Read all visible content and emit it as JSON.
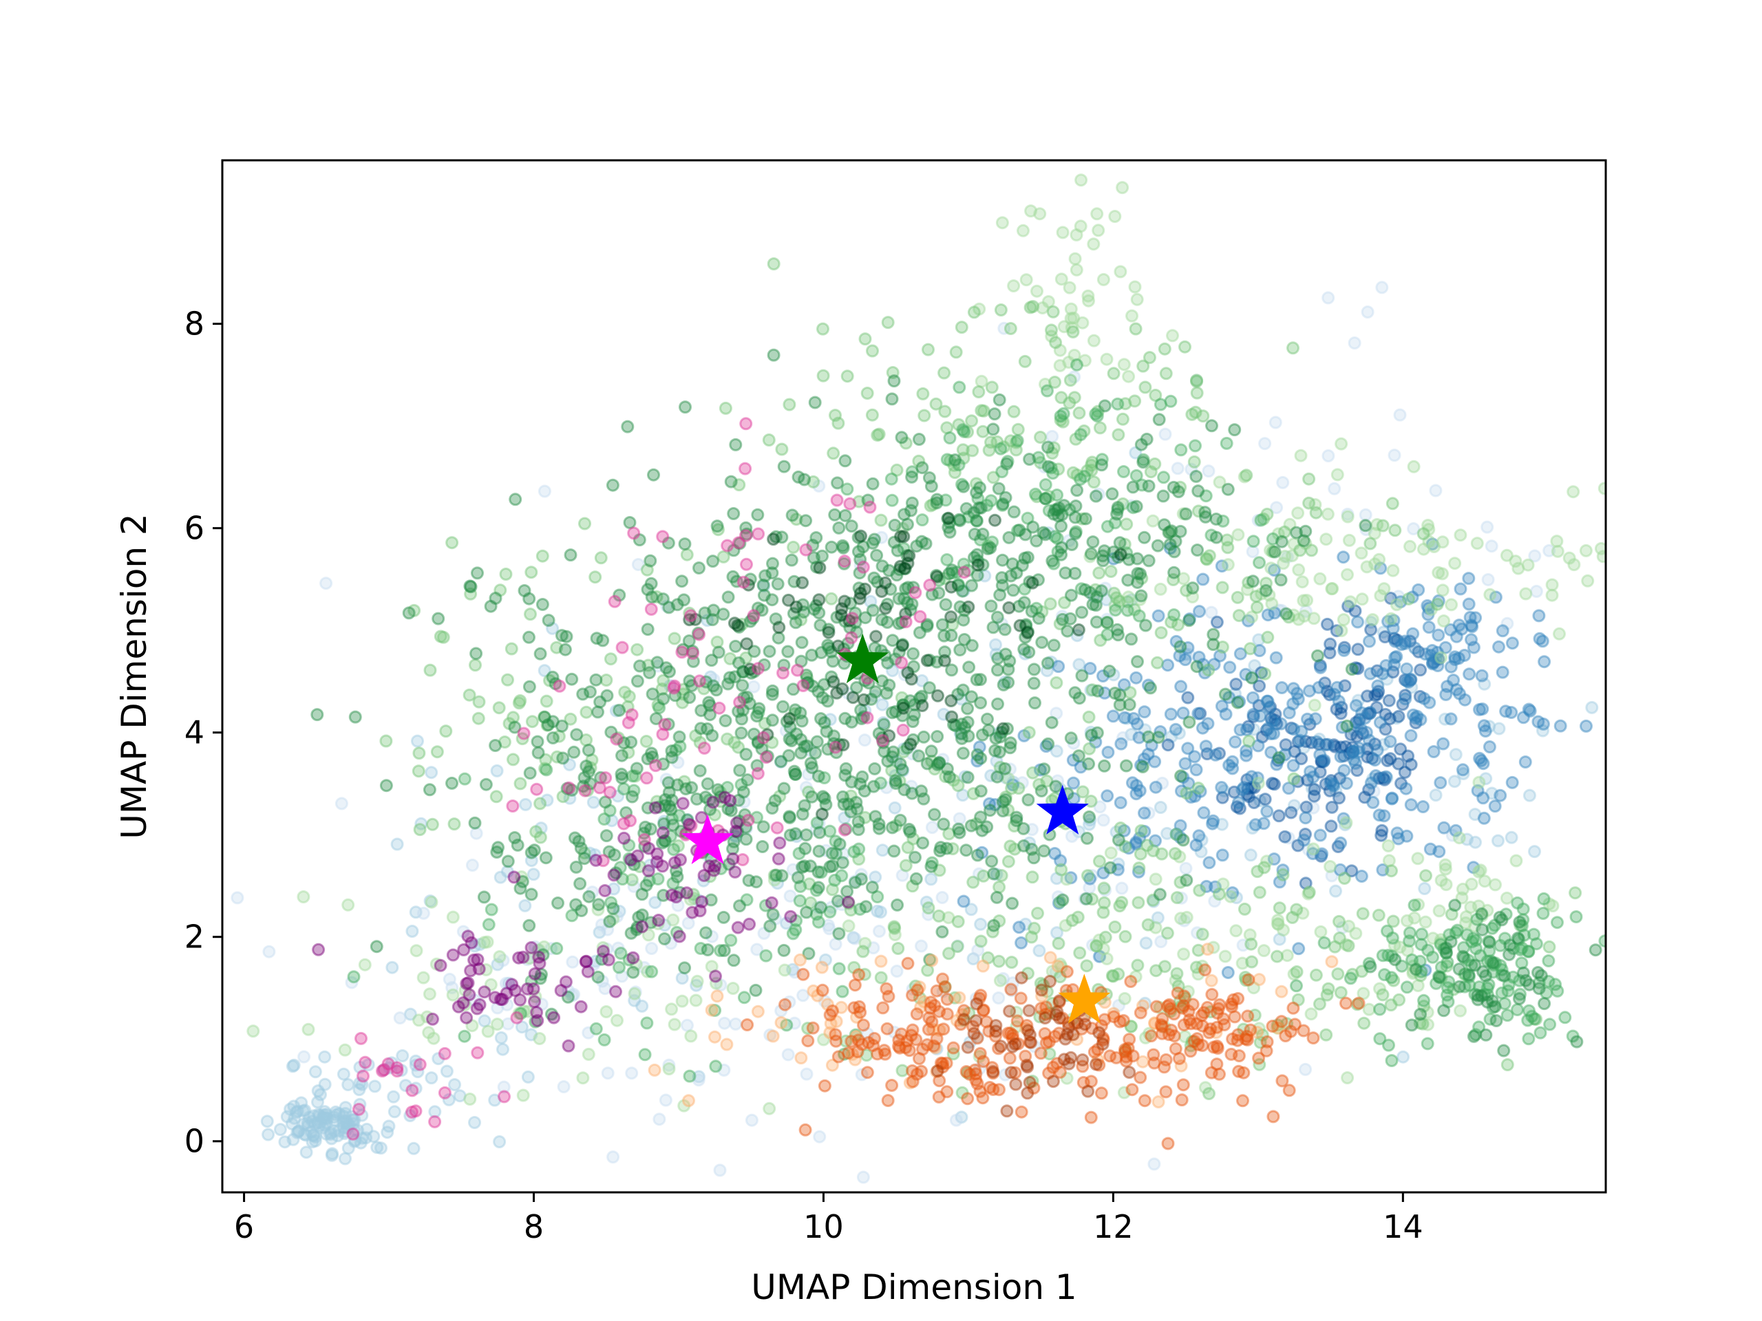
{
  "chart_data": {
    "type": "scatter",
    "title": "",
    "xlabel": "UMAP Dimension 1",
    "ylabel": "UMAP Dimension 2",
    "xlim": [
      5.85,
      15.4
    ],
    "ylim": [
      -0.5,
      9.6
    ],
    "xticks": [
      6,
      8,
      10,
      12,
      14
    ],
    "yticks": [
      0,
      2,
      4,
      6,
      8
    ],
    "grid": false,
    "legend": "none",
    "point_alpha": 0.45,
    "series": [
      {
        "color": "#9ecae1",
        "clusters": [
          {
            "cx": 6.55,
            "cy": 0.15,
            "sx": 0.15,
            "sy": 0.12,
            "n": 90
          },
          {
            "cx": 7.0,
            "cy": 0.5,
            "sx": 0.35,
            "sy": 0.25,
            "n": 50
          },
          {
            "cx": 8.4,
            "cy": 2.6,
            "sx": 0.7,
            "sy": 1.0,
            "n": 60
          },
          {
            "cx": 11.0,
            "cy": 3.4,
            "sx": 0.9,
            "sy": 1.1,
            "n": 80
          },
          {
            "cx": 13.5,
            "cy": 3.5,
            "sx": 1.0,
            "sy": 1.0,
            "n": 60
          }
        ]
      },
      {
        "color": "#c6dbef",
        "clusters": [
          {
            "cx": 10.5,
            "cy": 2.5,
            "sx": 1.6,
            "sy": 1.5,
            "n": 130
          },
          {
            "cx": 12.8,
            "cy": 6.2,
            "sx": 1.2,
            "sy": 0.9,
            "n": 50
          },
          {
            "cx": 8.6,
            "cy": 1.6,
            "sx": 1.0,
            "sy": 0.7,
            "n": 60
          }
        ]
      },
      {
        "color": "#08519c",
        "clusters": [
          {
            "cx": 13.3,
            "cy": 3.8,
            "sx": 0.35,
            "sy": 0.45,
            "n": 80
          },
          {
            "cx": 13.75,
            "cy": 4.2,
            "sx": 0.25,
            "sy": 0.55,
            "n": 70
          }
        ]
      },
      {
        "color": "#3182bd",
        "clusters": [
          {
            "cx": 13.4,
            "cy": 4.0,
            "sx": 0.75,
            "sy": 0.75,
            "n": 220
          },
          {
            "cx": 12.4,
            "cy": 3.2,
            "sx": 0.6,
            "sy": 0.6,
            "n": 80
          },
          {
            "cx": 14.4,
            "cy": 4.8,
            "sx": 0.4,
            "sy": 0.5,
            "n": 60
          }
        ]
      },
      {
        "color": "#a1d99b",
        "clusters": [
          {
            "cx": 13.8,
            "cy": 5.6,
            "sx": 0.9,
            "sy": 0.4,
            "n": 110
          },
          {
            "cx": 11.7,
            "cy": 8.3,
            "sx": 0.3,
            "sy": 0.6,
            "n": 50
          },
          {
            "cx": 8.3,
            "cy": 1.6,
            "sx": 0.8,
            "sy": 0.6,
            "n": 70
          },
          {
            "cx": 12.6,
            "cy": 1.8,
            "sx": 1.2,
            "sy": 0.6,
            "n": 90
          },
          {
            "cx": 14.4,
            "cy": 2.4,
            "sx": 0.3,
            "sy": 0.3,
            "n": 30
          }
        ]
      },
      {
        "color": "#74c476",
        "clusters": [
          {
            "cx": 11.3,
            "cy": 7.0,
            "sx": 0.9,
            "sy": 0.6,
            "n": 130
          },
          {
            "cx": 8.5,
            "cy": 4.3,
            "sx": 0.7,
            "sy": 0.9,
            "n": 110
          },
          {
            "cx": 11.4,
            "cy": 2.4,
            "sx": 0.8,
            "sy": 0.8,
            "n": 140
          },
          {
            "cx": 13.2,
            "cy": 1.7,
            "sx": 0.9,
            "sy": 0.5,
            "n": 90
          },
          {
            "cx": 12.6,
            "cy": 5.4,
            "sx": 0.8,
            "sy": 0.5,
            "n": 60
          }
        ]
      },
      {
        "color": "#41ab5d",
        "clusters": [
          {
            "cx": 14.5,
            "cy": 1.7,
            "sx": 0.45,
            "sy": 0.35,
            "n": 130
          },
          {
            "cx": 11.6,
            "cy": 6.2,
            "sx": 0.7,
            "sy": 0.6,
            "n": 90
          },
          {
            "cx": 9.2,
            "cy": 2.4,
            "sx": 0.8,
            "sy": 0.7,
            "n": 90
          }
        ]
      },
      {
        "color": "#238b45",
        "clusters": [
          {
            "cx": 10.2,
            "cy": 4.8,
            "sx": 1.1,
            "sy": 0.9,
            "n": 420
          },
          {
            "cx": 9.0,
            "cy": 3.2,
            "sx": 0.7,
            "sy": 0.8,
            "n": 190
          },
          {
            "cx": 11.5,
            "cy": 5.8,
            "sx": 0.8,
            "sy": 0.6,
            "n": 180
          },
          {
            "cx": 10.7,
            "cy": 3.3,
            "sx": 0.7,
            "sy": 0.7,
            "n": 130
          },
          {
            "cx": 14.6,
            "cy": 1.6,
            "sx": 0.3,
            "sy": 0.3,
            "n": 50
          }
        ]
      },
      {
        "color": "#00441b",
        "clusters": [
          {
            "cx": 10.4,
            "cy": 5.0,
            "sx": 0.6,
            "sy": 0.6,
            "n": 70
          }
        ]
      },
      {
        "color": "#dd3497",
        "clusters": [
          {
            "cx": 9.8,
            "cy": 5.0,
            "sx": 0.8,
            "sy": 0.7,
            "n": 50
          },
          {
            "cx": 8.8,
            "cy": 3.4,
            "sx": 0.5,
            "sy": 0.5,
            "n": 30
          },
          {
            "cx": 7.1,
            "cy": 0.6,
            "sx": 0.3,
            "sy": 0.3,
            "n": 20
          }
        ]
      },
      {
        "color": "#7a0177",
        "clusters": [
          {
            "cx": 7.9,
            "cy": 1.6,
            "sx": 0.35,
            "sy": 0.25,
            "n": 50
          },
          {
            "cx": 9.1,
            "cy": 2.6,
            "sx": 0.35,
            "sy": 0.4,
            "n": 50
          }
        ]
      },
      {
        "color": "#fdae6b",
        "clusters": [
          {
            "cx": 11.0,
            "cy": 1.2,
            "sx": 1.1,
            "sy": 0.35,
            "n": 60
          }
        ]
      },
      {
        "color": "#e6550d",
        "clusters": [
          {
            "cx": 11.3,
            "cy": 0.95,
            "sx": 0.7,
            "sy": 0.3,
            "n": 130
          },
          {
            "cx": 12.7,
            "cy": 1.0,
            "sx": 0.35,
            "sy": 0.3,
            "n": 90
          },
          {
            "cx": 10.4,
            "cy": 1.1,
            "sx": 0.35,
            "sy": 0.25,
            "n": 50
          }
        ]
      },
      {
        "color": "#a63603",
        "clusters": [
          {
            "cx": 11.5,
            "cy": 1.0,
            "sx": 0.3,
            "sy": 0.25,
            "n": 50
          }
        ]
      }
    ],
    "centroids": [
      {
        "x": 10.27,
        "y": 4.7,
        "color": "#008000"
      },
      {
        "x": 9.2,
        "y": 2.93,
        "color": "#ff00ff"
      },
      {
        "x": 11.65,
        "y": 3.22,
        "color": "#0000ff"
      },
      {
        "x": 11.8,
        "y": 1.37,
        "color": "#ffa500"
      }
    ]
  }
}
